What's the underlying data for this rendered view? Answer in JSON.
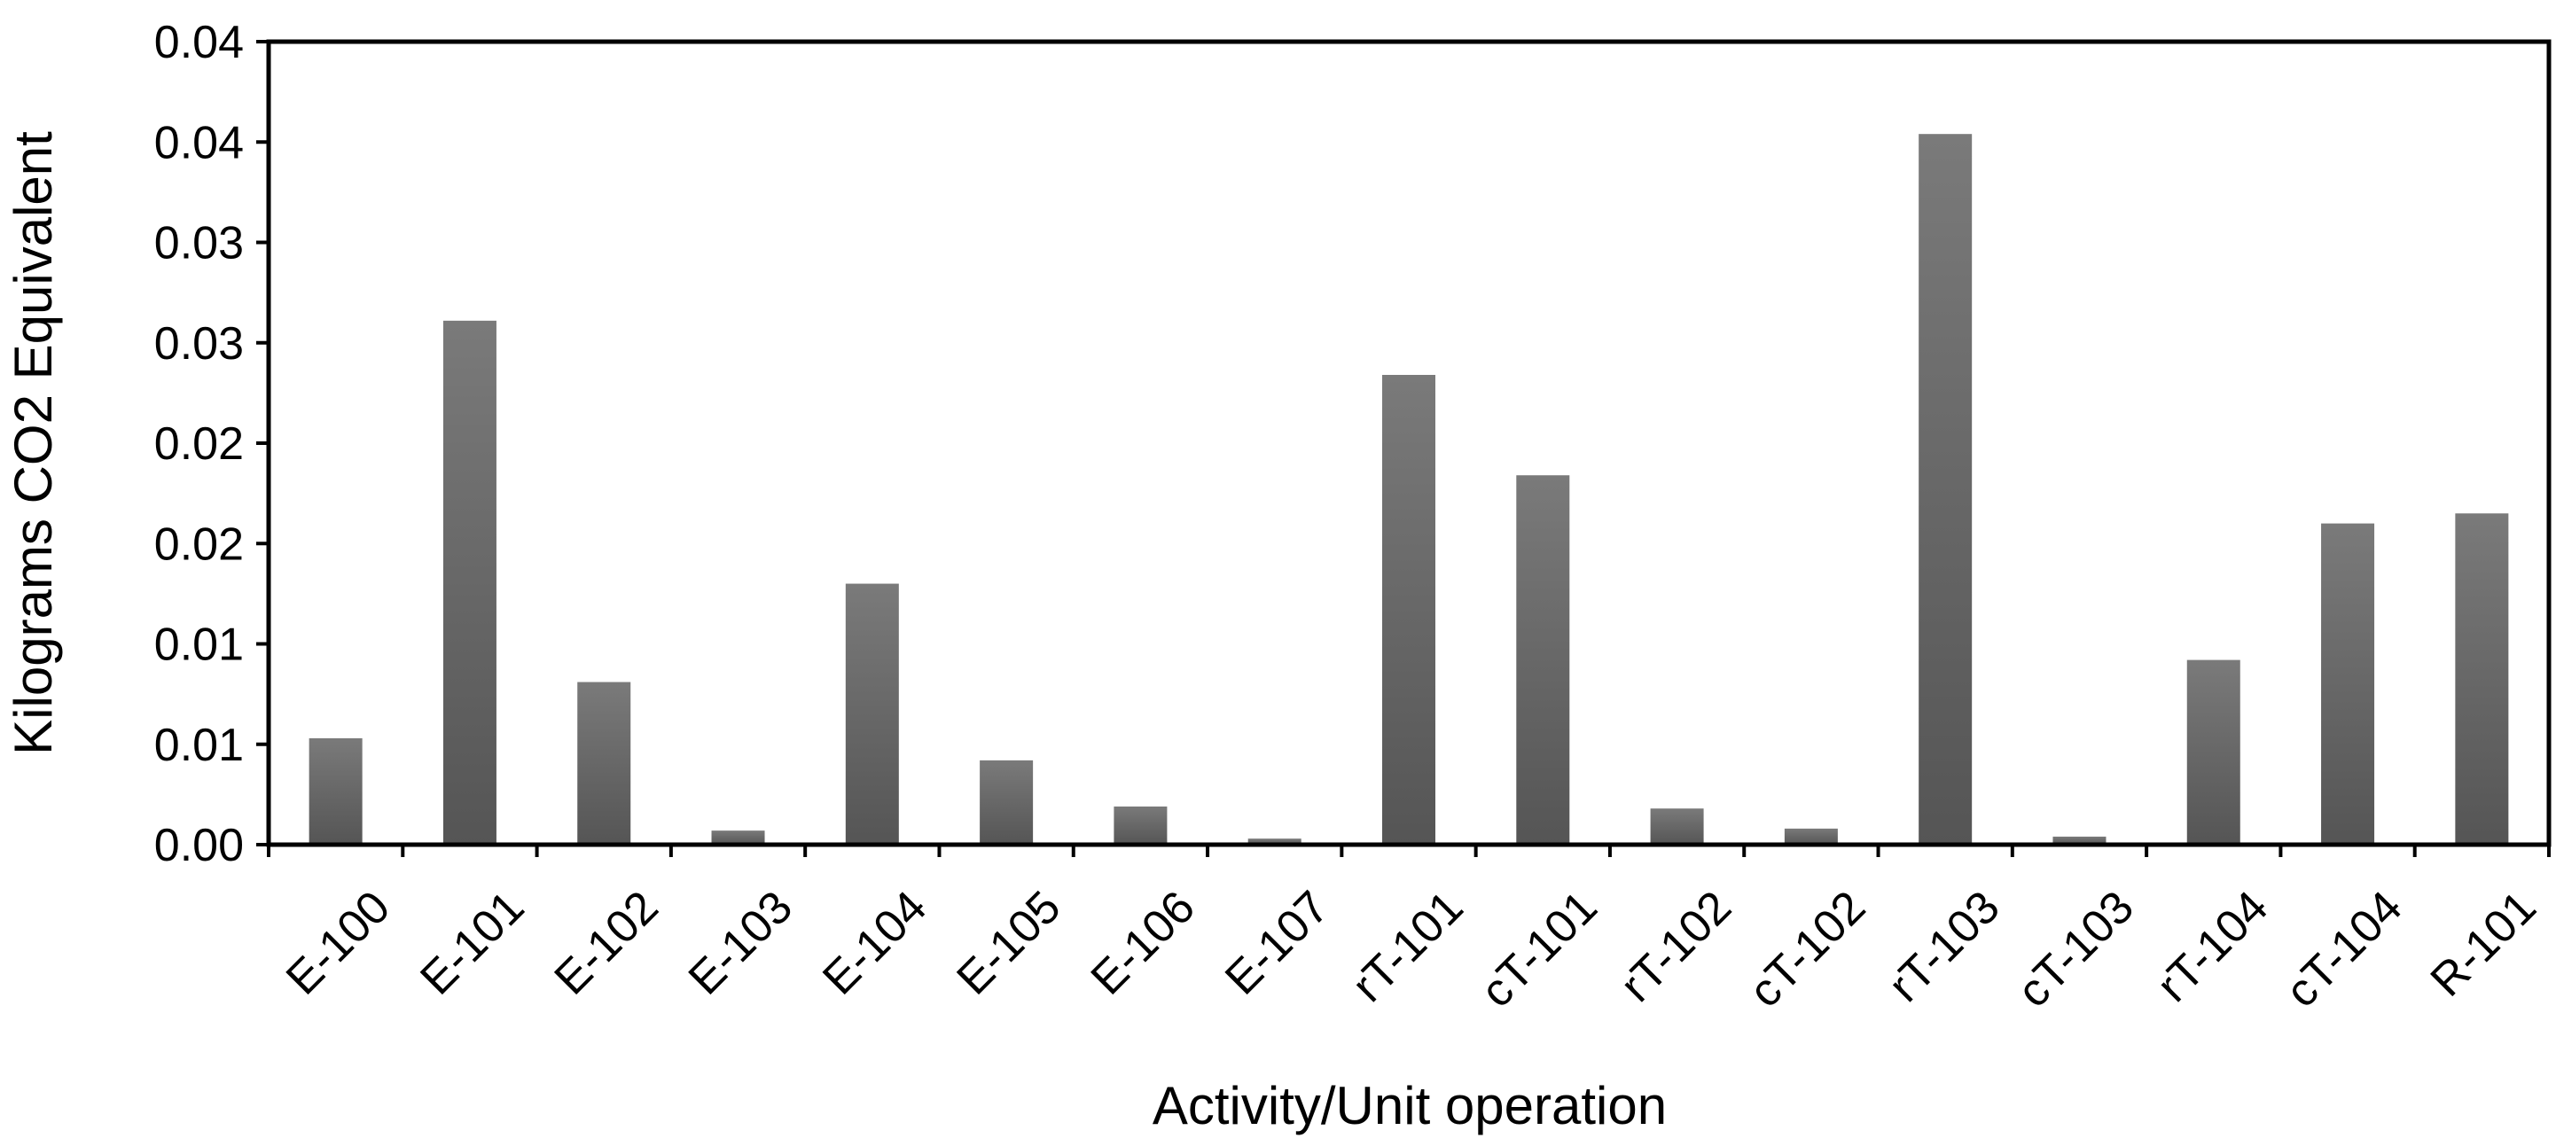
{
  "chart_data": {
    "type": "bar",
    "title": "",
    "xlabel": "Activity/Unit operation",
    "ylabel": "Kilograms CO2 Equivalent",
    "ylim": [
      0,
      0.04
    ],
    "grid": false,
    "ytick_values": [
      0,
      0.005,
      0.01,
      0.015,
      0.02,
      0.025,
      0.03,
      0.035,
      0.04
    ],
    "ytick_labels": [
      "0.00",
      "0.01",
      "0.01",
      "0.02",
      "0.02",
      "0.03",
      "0.03",
      "0.04",
      "0.04"
    ],
    "categories": [
      "E-100",
      "E-101",
      "E-102",
      "E-103",
      "E-104",
      "E-105",
      "E-106",
      "E-107",
      "rT-101",
      "cT-101",
      "rT-102",
      "cT-102",
      "rT-103",
      "cT-103",
      "rT-104",
      "cT-104",
      "R-101"
    ],
    "values": [
      0.0053,
      0.0261,
      0.0081,
      0.0007,
      0.013,
      0.0042,
      0.0019,
      0.0003,
      0.0234,
      0.0184,
      0.0018,
      0.0008,
      0.0354,
      0.0004,
      0.0092,
      0.016,
      0.0165
    ],
    "colors": {
      "bar": "#6b6b6b",
      "bar_dark": "#555555",
      "bar_light": "#7a7a7a",
      "axis": "#000000"
    }
  }
}
